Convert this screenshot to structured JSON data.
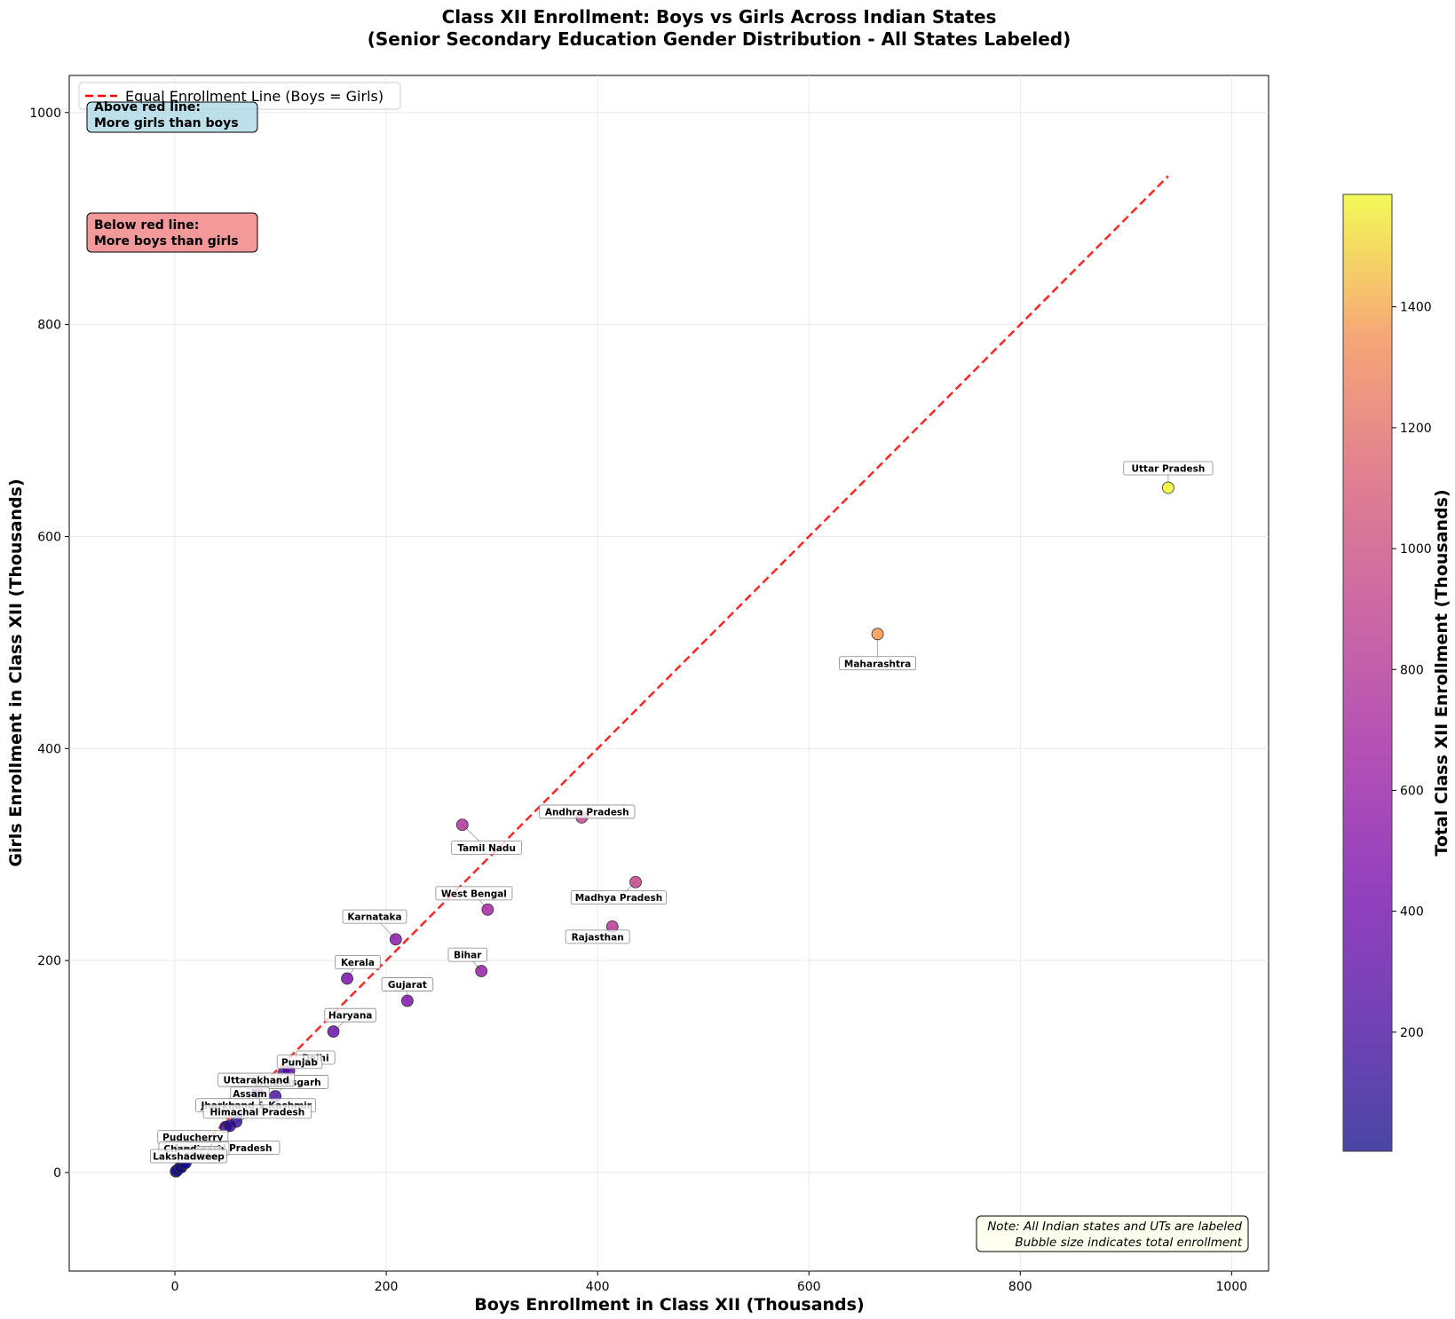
{
  "chart_data": {
    "type": "scatter",
    "title": "Class XII Enrollment: Boys vs Girls Across Indian States",
    "subtitle": "(Senior Secondary Education Gender Distribution - All States Labeled)",
    "xlabel": "Boys Enrollment in Class XII (Thousands)",
    "ylabel": "Girls Enrollment in Class XII (Thousands)",
    "xlim": [
      -100,
      1035
    ],
    "ylim": [
      -93,
      1035
    ],
    "x_ticks": [
      0,
      200,
      400,
      600,
      800,
      1000
    ],
    "y_ticks": [
      0,
      200,
      400,
      600,
      800,
      1000
    ],
    "grid": true,
    "colorbar": {
      "label": "Total Class XII Enrollment (Thousands)",
      "range": [
        3,
        1586
      ],
      "ticks": [
        200,
        400,
        600,
        800,
        1000,
        1200,
        1400
      ]
    },
    "reference_line": {
      "label": "Equal Enrollment Line (Boys = Girls)",
      "from": [
        0,
        0
      ],
      "to": [
        940,
        940
      ],
      "color": "#ff0000"
    },
    "legend": {
      "position": "top-left",
      "entries": [
        "Equal Enrollment Line (Boys = Girls)"
      ]
    },
    "annotations": {
      "above": "Above red line:\nMore girls than boys",
      "below": "Below red line:\nMore boys than girls",
      "note": "Note: All Indian states and UTs are labeled\nBubble size indicates total enrollment"
    },
    "points": [
      {
        "label": "Uttar Pradesh",
        "x": 940,
        "y": 646,
        "lx": 940,
        "ly": 664
      },
      {
        "label": "Maharashtra",
        "x": 665,
        "y": 508,
        "lx": 665,
        "ly": 480
      },
      {
        "label": "Andhra Pradesh",
        "x": 385,
        "y": 335,
        "lx": 390,
        "ly": 340
      },
      {
        "label": "Tamil Nadu",
        "x": 272,
        "y": 328,
        "lx": 295,
        "ly": 306
      },
      {
        "label": "Madhya Pradesh",
        "x": 436,
        "y": 274,
        "lx": 420,
        "ly": 259
      },
      {
        "label": "West Bengal",
        "x": 296,
        "y": 248,
        "lx": 283,
        "ly": 263
      },
      {
        "label": "Rajasthan",
        "x": 414,
        "y": 232,
        "lx": 400,
        "ly": 222
      },
      {
        "label": "Karnataka",
        "x": 209,
        "y": 220,
        "lx": 189,
        "ly": 241
      },
      {
        "label": "Bihar",
        "x": 290,
        "y": 190,
        "lx": 277,
        "ly": 205
      },
      {
        "label": "Kerala",
        "x": 163,
        "y": 183,
        "lx": 173,
        "ly": 198
      },
      {
        "label": "Gujarat",
        "x": 220,
        "y": 162,
        "lx": 220,
        "ly": 177
      },
      {
        "label": "Haryana",
        "x": 150,
        "y": 133,
        "lx": 166,
        "ly": 148
      },
      {
        "label": "Delhi",
        "x": 108,
        "y": 96,
        "lx": 133,
        "ly": 108
      },
      {
        "label": "Punjab",
        "x": 103,
        "y": 94,
        "lx": 118,
        "ly": 104
      },
      {
        "label": "Chhattisgarh",
        "x": 95,
        "y": 72,
        "lx": 106,
        "ly": 85
      },
      {
        "label": "Uttarakhand",
        "x": 78,
        "y": 76,
        "lx": 77,
        "ly": 87
      },
      {
        "label": "Assam",
        "x": 62,
        "y": 58,
        "lx": 71,
        "ly": 74
      },
      {
        "label": "Jammu & Kashmir",
        "x": 58,
        "y": 48,
        "lx": 85,
        "ly": 63
      },
      {
        "label": "Jharkhand",
        "x": 48,
        "y": 43,
        "lx": 50,
        "ly": 63
      },
      {
        "label": "Himachal Pradesh",
        "x": 52,
        "y": 44,
        "lx": 78,
        "ly": 57
      },
      {
        "label": "Puducherry",
        "x": 10,
        "y": 9,
        "lx": 17,
        "ly": 33
      },
      {
        "label": "Arunachal Pradesh",
        "x": 6,
        "y": 5,
        "lx": 45,
        "ly": 23
      },
      {
        "label": "Chandigarh",
        "x": 8,
        "y": 8,
        "lx": 18,
        "ly": 22
      },
      {
        "label": "Goa",
        "x": 5,
        "y": 5,
        "lx": 32,
        "ly": 18
      },
      {
        "label": "Sikkim",
        "x": 2,
        "y": 2,
        "lx": 25,
        "ly": 15
      },
      {
        "label": "Lakshadweep",
        "x": 1,
        "y": 1,
        "lx": 13,
        "ly": 15
      }
    ],
    "colors": {
      "marker_edge": "#333333",
      "line": "#ff0000",
      "box_above": "#add8e6",
      "box_below": "#f08080",
      "box_note": "#fffff0"
    }
  }
}
